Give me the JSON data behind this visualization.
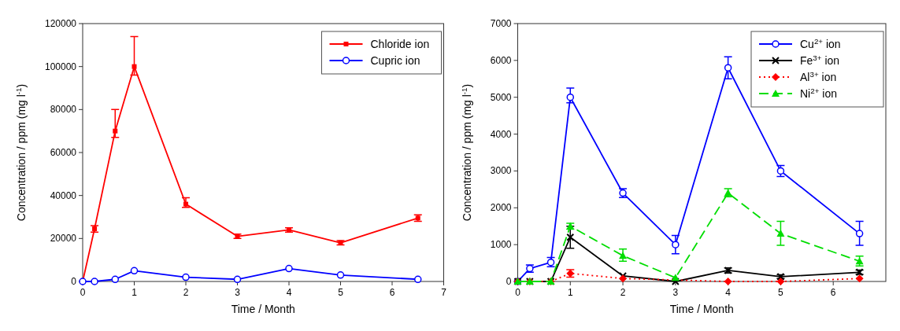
{
  "chart_data": [
    {
      "type": "line",
      "xlabel": "Time / Month",
      "ylabel": "Concentration / ppm (mg l$^{-1}$)",
      "x": [
        0,
        0.23,
        0.63,
        1,
        2,
        3,
        4,
        5,
        6.5
      ],
      "xlim": [
        0,
        7
      ],
      "xticks": [
        0,
        1,
        2,
        3,
        4,
        5,
        6,
        7
      ],
      "ylim": [
        0,
        120000
      ],
      "yticks": [
        0,
        20000,
        40000,
        60000,
        80000,
        100000,
        120000
      ],
      "grid": false,
      "legend": "top right",
      "series": [
        {
          "name": "Chloride ion",
          "color": "#ff0000",
          "marker": "square",
          "line_style": "solid",
          "values": [
            0,
            24500,
            70000,
            100000,
            36000,
            21000,
            24000,
            18000,
            29500
          ],
          "errors": [
            null,
            1500,
            [
              67000,
              80000
            ],
            [
              96000,
              114000
            ],
            [
              34500,
              39000
            ],
            1000,
            1000,
            1000,
            1500
          ]
        },
        {
          "name": "Cupric ion",
          "color": "#0000ff",
          "marker": "circle",
          "line_style": "solid",
          "values": [
            0,
            0,
            1000,
            5000,
            2000,
            1000,
            6000,
            3000,
            1000
          ]
        }
      ]
    },
    {
      "type": "line",
      "xlabel": "Time / Month",
      "ylabel": "Concentration / ppm (mg l$^{-1}$)",
      "x": [
        0,
        0.23,
        0.63,
        1,
        2,
        3,
        4,
        5,
        6.5
      ],
      "xlim": [
        0,
        7
      ],
      "xticks": [
        0,
        1,
        2,
        3,
        4,
        5,
        6
      ],
      "ylim": [
        0,
        7000
      ],
      "yticks": [
        0,
        1000,
        2000,
        3000,
        4000,
        5000,
        6000,
        7000
      ],
      "grid": false,
      "legend": "top right",
      "series": [
        {
          "name": "Cu$^{2+}$ ion",
          "color": "#0000ff",
          "marker": "circle",
          "line_style": "solid",
          "values": [
            0,
            350,
            520,
            5000,
            2400,
            1000,
            5800,
            3000,
            1300
          ],
          "errors": [
            null,
            100,
            [
              400,
              650
            ],
            [
              4850,
              5250
            ],
            120,
            [
              750,
              1250
            ],
            [
              5500,
              6100
            ],
            [
              2850,
              3150
            ],
            [
              980,
              1630
            ]
          ]
        },
        {
          "name": "Fe$^{3+}$ ion",
          "color": "#000000",
          "marker": "cross",
          "line_style": "solid",
          "values": [
            0,
            0,
            0,
            1200,
            150,
            0,
            300,
            130,
            250
          ],
          "errors": [
            null,
            null,
            null,
            [
              900,
              1500
            ],
            null,
            null,
            70,
            50,
            60
          ]
        },
        {
          "name": "Al$^{3+}$ ion",
          "color": "#ff0000",
          "marker": "diamond",
          "line_style": "dotted",
          "values": [
            0,
            0,
            0,
            220,
            80,
            null,
            0,
            0,
            80
          ],
          "errors": [
            null,
            null,
            null,
            100,
            null,
            null,
            null,
            null,
            null
          ]
        },
        {
          "name": "Ni$^{2+}$ ion",
          "color": "#00dd00",
          "marker": "triangle",
          "line_style": "dashed",
          "values": [
            0,
            0,
            0,
            1500,
            700,
            100,
            2400,
            1300,
            550
          ],
          "errors": [
            null,
            null,
            null,
            80,
            [
              550,
              880
            ],
            null,
            [
              2300,
              2520
            ],
            [
              980,
              1630
            ],
            [
              420,
              690
            ]
          ]
        }
      ]
    }
  ]
}
